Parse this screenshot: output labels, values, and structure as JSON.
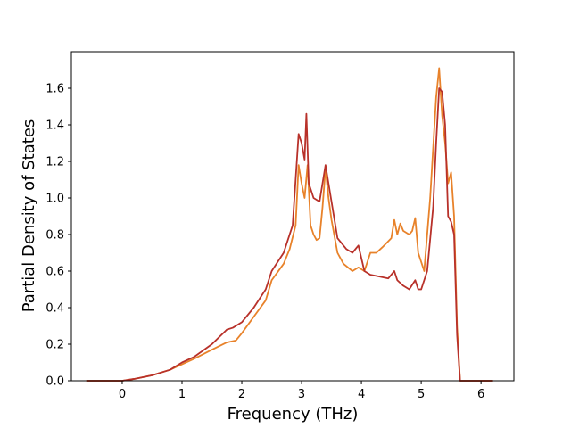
{
  "chart_data": {
    "type": "line",
    "title": "",
    "xlabel": "Frequency (THz)",
    "ylabel": "Partial Density of States",
    "xlim": [
      -0.85,
      6.55
    ],
    "ylim": [
      0.0,
      1.8
    ],
    "xticks": [
      0,
      1,
      2,
      3,
      4,
      5,
      6
    ],
    "yticks": [
      0.0,
      0.2,
      0.4,
      0.6,
      0.8,
      1.0,
      1.2,
      1.4,
      1.6
    ],
    "ytick_labels": [
      "0.0",
      "0.2",
      "0.4",
      "0.6",
      "0.8",
      "1.0",
      "1.2",
      "1.4",
      "1.6"
    ],
    "grid": false,
    "legend": "none",
    "series": [
      {
        "color": "#e8822a",
        "points": [
          [
            -0.6,
            0.0
          ],
          [
            0.0,
            0.0
          ],
          [
            0.2,
            0.01
          ],
          [
            0.5,
            0.03
          ],
          [
            0.8,
            0.06
          ],
          [
            1.0,
            0.09
          ],
          [
            1.2,
            0.12
          ],
          [
            1.5,
            0.17
          ],
          [
            1.75,
            0.21
          ],
          [
            1.9,
            0.22
          ],
          [
            2.0,
            0.26
          ],
          [
            2.2,
            0.35
          ],
          [
            2.4,
            0.44
          ],
          [
            2.5,
            0.55
          ],
          [
            2.7,
            0.64
          ],
          [
            2.8,
            0.72
          ],
          [
            2.9,
            0.85
          ],
          [
            2.95,
            1.18
          ],
          [
            3.0,
            1.08
          ],
          [
            3.05,
            1.0
          ],
          [
            3.1,
            1.18
          ],
          [
            3.15,
            0.85
          ],
          [
            3.2,
            0.8
          ],
          [
            3.25,
            0.77
          ],
          [
            3.3,
            0.78
          ],
          [
            3.35,
            0.95
          ],
          [
            3.4,
            1.16
          ],
          [
            3.45,
            1.0
          ],
          [
            3.5,
            0.88
          ],
          [
            3.55,
            0.79
          ],
          [
            3.6,
            0.7
          ],
          [
            3.7,
            0.64
          ],
          [
            3.85,
            0.6
          ],
          [
            3.95,
            0.62
          ],
          [
            4.05,
            0.6
          ],
          [
            4.15,
            0.7
          ],
          [
            4.25,
            0.7
          ],
          [
            4.35,
            0.73
          ],
          [
            4.5,
            0.78
          ],
          [
            4.55,
            0.88
          ],
          [
            4.6,
            0.8
          ],
          [
            4.65,
            0.86
          ],
          [
            4.7,
            0.82
          ],
          [
            4.8,
            0.8
          ],
          [
            4.85,
            0.82
          ],
          [
            4.9,
            0.89
          ],
          [
            4.95,
            0.7
          ],
          [
            5.05,
            0.6
          ],
          [
            5.15,
            1.0
          ],
          [
            5.25,
            1.55
          ],
          [
            5.3,
            1.71
          ],
          [
            5.35,
            1.45
          ],
          [
            5.4,
            1.3
          ],
          [
            5.45,
            1.08
          ],
          [
            5.5,
            1.14
          ],
          [
            5.55,
            0.9
          ],
          [
            5.6,
            0.3
          ],
          [
            5.65,
            0.0
          ],
          [
            6.2,
            0.0
          ]
        ]
      },
      {
        "color": "#b8312a",
        "points": [
          [
            -0.6,
            0.0
          ],
          [
            0.0,
            0.0
          ],
          [
            0.2,
            0.01
          ],
          [
            0.5,
            0.03
          ],
          [
            0.8,
            0.06
          ],
          [
            1.0,
            0.1
          ],
          [
            1.2,
            0.13
          ],
          [
            1.5,
            0.2
          ],
          [
            1.75,
            0.28
          ],
          [
            1.85,
            0.29
          ],
          [
            2.0,
            0.32
          ],
          [
            2.2,
            0.4
          ],
          [
            2.4,
            0.5
          ],
          [
            2.5,
            0.6
          ],
          [
            2.7,
            0.7
          ],
          [
            2.85,
            0.85
          ],
          [
            2.95,
            1.35
          ],
          [
            3.0,
            1.3
          ],
          [
            3.05,
            1.21
          ],
          [
            3.08,
            1.46
          ],
          [
            3.12,
            1.08
          ],
          [
            3.2,
            1.0
          ],
          [
            3.3,
            0.98
          ],
          [
            3.4,
            1.18
          ],
          [
            3.5,
            0.98
          ],
          [
            3.6,
            0.78
          ],
          [
            3.75,
            0.72
          ],
          [
            3.85,
            0.7
          ],
          [
            3.95,
            0.74
          ],
          [
            4.05,
            0.6
          ],
          [
            4.15,
            0.58
          ],
          [
            4.3,
            0.57
          ],
          [
            4.45,
            0.56
          ],
          [
            4.55,
            0.6
          ],
          [
            4.6,
            0.55
          ],
          [
            4.7,
            0.52
          ],
          [
            4.8,
            0.5
          ],
          [
            4.9,
            0.55
          ],
          [
            4.95,
            0.5
          ],
          [
            5.0,
            0.5
          ],
          [
            5.1,
            0.6
          ],
          [
            5.2,
            0.95
          ],
          [
            5.25,
            1.3
          ],
          [
            5.3,
            1.6
          ],
          [
            5.35,
            1.58
          ],
          [
            5.4,
            1.4
          ],
          [
            5.45,
            0.9
          ],
          [
            5.5,
            0.87
          ],
          [
            5.55,
            0.8
          ],
          [
            5.6,
            0.25
          ],
          [
            5.65,
            0.0
          ],
          [
            6.2,
            0.0
          ]
        ]
      }
    ]
  }
}
